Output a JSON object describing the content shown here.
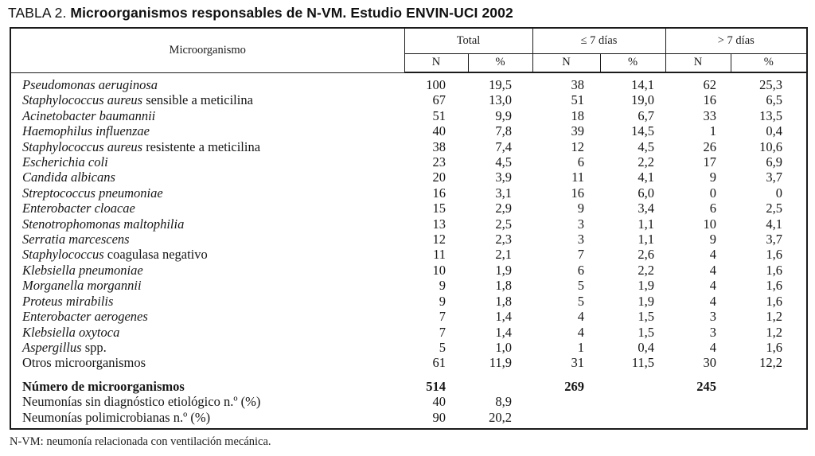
{
  "title": {
    "prefix": "TABLA 2.",
    "text": "Microorganismos responsables de N-VM. Estudio ENVIN-UCI 2002"
  },
  "table": {
    "header": {
      "micro": "Microorganismo",
      "groups": [
        "Total",
        "≤ 7 días",
        "> 7 días"
      ],
      "n_label": "N",
      "pct_label": "%"
    },
    "rows": [
      {
        "italic": "Pseudomonas aeruginosa",
        "roman": "",
        "cells": [
          "100",
          "19,5",
          "38",
          "14,1",
          "62",
          "25,3"
        ]
      },
      {
        "italic": "Staphylococcus aureus",
        "roman": " sensible a meticilina",
        "cells": [
          "67",
          "13,0",
          "51",
          "19,0",
          "16",
          "6,5"
        ]
      },
      {
        "italic": "Acinetobacter baumannii",
        "roman": "",
        "cells": [
          "51",
          "9,9",
          "18",
          "6,7",
          "33",
          "13,5"
        ]
      },
      {
        "italic": "Haemophilus influenzae",
        "roman": "",
        "cells": [
          "40",
          "7,8",
          "39",
          "14,5",
          "1",
          "0,4"
        ]
      },
      {
        "italic": "Staphylococcus aureus",
        "roman": " resistente a meticilina",
        "cells": [
          "38",
          "7,4",
          "12",
          "4,5",
          "26",
          "10,6"
        ]
      },
      {
        "italic": "Escherichia coli",
        "roman": "",
        "cells": [
          "23",
          "4,5",
          "6",
          "2,2",
          "17",
          "6,9"
        ]
      },
      {
        "italic": "Candida albicans",
        "roman": "",
        "cells": [
          "20",
          "3,9",
          "11",
          "4,1",
          "9",
          "3,7"
        ]
      },
      {
        "italic": "Streptococcus pneumoniae",
        "roman": "",
        "cells": [
          "16",
          "3,1",
          "16",
          "6,0",
          "0",
          "0"
        ]
      },
      {
        "italic": "Enterobacter cloacae",
        "roman": "",
        "cells": [
          "15",
          "2,9",
          "9",
          "3,4",
          "6",
          "2,5"
        ]
      },
      {
        "italic": "Stenotrophomonas maltophilia",
        "roman": "",
        "cells": [
          "13",
          "2,5",
          "3",
          "1,1",
          "10",
          "4,1"
        ]
      },
      {
        "italic": "Serratia marcescens",
        "roman": "",
        "cells": [
          "12",
          "2,3",
          "3",
          "1,1",
          "9",
          "3,7"
        ]
      },
      {
        "italic": "Staphylococcus",
        "roman": " coagulasa negativo",
        "cells": [
          "11",
          "2,1",
          "7",
          "2,6",
          "4",
          "1,6"
        ]
      },
      {
        "italic": "Klebsiella pneumoniae",
        "roman": "",
        "cells": [
          "10",
          "1,9",
          "6",
          "2,2",
          "4",
          "1,6"
        ]
      },
      {
        "italic": "Morganella morgannii",
        "roman": "",
        "cells": [
          "9",
          "1,8",
          "5",
          "1,9",
          "4",
          "1,6"
        ]
      },
      {
        "italic": "Proteus mirabilis",
        "roman": "",
        "cells": [
          "9",
          "1,8",
          "5",
          "1,9",
          "4",
          "1,6"
        ]
      },
      {
        "italic": "Enterobacter aerogenes",
        "roman": "",
        "cells": [
          "7",
          "1,4",
          "4",
          "1,5",
          "3",
          "1,2"
        ]
      },
      {
        "italic": "Klebsiella oxytoca",
        "roman": "",
        "cells": [
          "7",
          "1,4",
          "4",
          "1,5",
          "3",
          "1,2"
        ]
      },
      {
        "italic": "Aspergillus",
        "roman": " spp.",
        "cells": [
          "5",
          "1,0",
          "1",
          "0,4",
          "4",
          "1,6"
        ]
      },
      {
        "italic": "",
        "roman": "Otros microorganismos",
        "cells": [
          "61",
          "11,9",
          "31",
          "11,5",
          "30",
          "12,2"
        ]
      }
    ],
    "summary_rows": [
      {
        "label": "Número de microorganismos",
        "bold": true,
        "cells": [
          "514",
          "",
          "269",
          "",
          "245",
          ""
        ]
      },
      {
        "label": "Neumonías sin diagnóstico etiológico n.º (%)",
        "bold": false,
        "cells": [
          "40",
          "8,9",
          "",
          "",
          "",
          ""
        ]
      },
      {
        "label": "Neumonías polimicrobianas n.º (%)",
        "bold": false,
        "cells": [
          "90",
          "20,2",
          "",
          "",
          "",
          ""
        ]
      }
    ]
  },
  "footnote": "N-VM: neumonía relacionada con ventilación mecánica."
}
